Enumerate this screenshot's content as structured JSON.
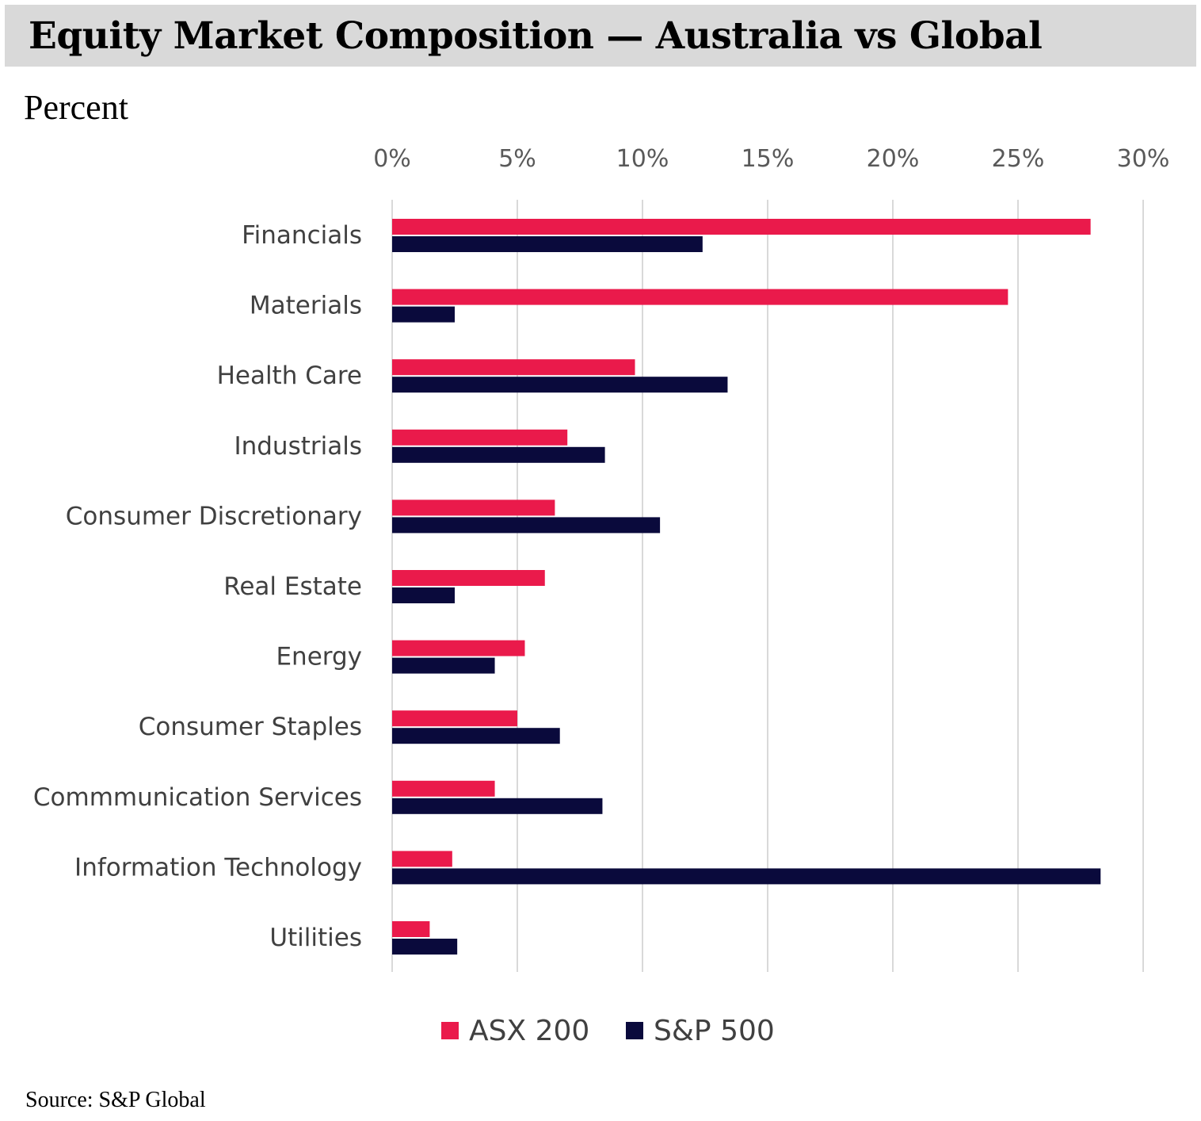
{
  "header": {
    "title": "Equity Market Composition — Australia vs Global",
    "subtitle": "Percent"
  },
  "footer": {
    "source": "Source: S&P Global"
  },
  "colors": {
    "asx": "#ea1a4b",
    "sp": "#0a0a3c",
    "grid": "#d9d9d9",
    "title_bg": "#d9d9d9"
  },
  "chart_data": {
    "type": "bar",
    "orientation": "horizontal",
    "title": "Equity Market Composition — Australia vs Global",
    "xlabel": "",
    "ylabel": "Percent",
    "xlim": [
      0,
      30
    ],
    "grid": true,
    "x_ticks": [
      0,
      5,
      10,
      15,
      20,
      25,
      30
    ],
    "x_tick_labels": [
      "0%",
      "5%",
      "10%",
      "15%",
      "20%",
      "25%",
      "30%"
    ],
    "categories": [
      "Financials",
      "Materials",
      "Health Care",
      "Industrials",
      "Consumer Discretionary",
      "Real Estate",
      "Energy",
      "Consumer Staples",
      "Commmunication Services",
      "Information Technology",
      "Utilities"
    ],
    "series": [
      {
        "name": "ASX 200",
        "values": [
          27.9,
          24.6,
          9.7,
          7.0,
          6.5,
          6.1,
          5.3,
          5.0,
          4.1,
          2.4,
          1.5
        ]
      },
      {
        "name": "S&P 500",
        "values": [
          12.4,
          2.5,
          13.4,
          8.5,
          10.7,
          2.5,
          4.1,
          6.7,
          8.4,
          28.3,
          2.6
        ]
      }
    ],
    "legend": "bottom"
  }
}
